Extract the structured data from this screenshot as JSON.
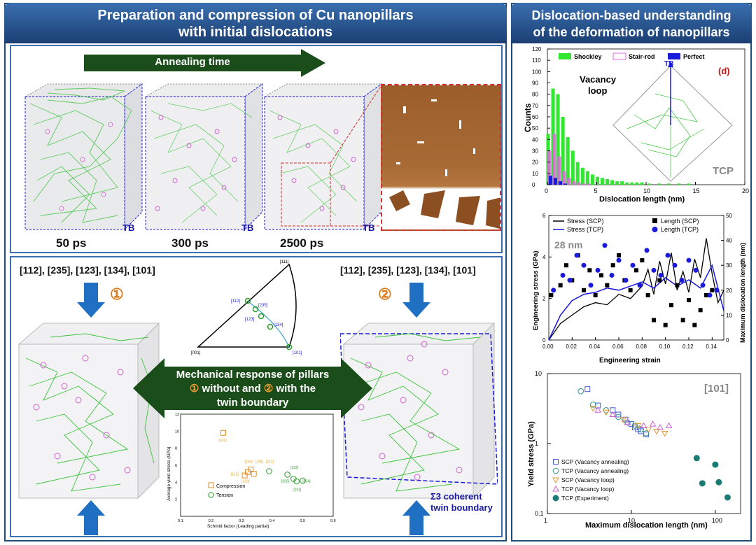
{
  "left_header": {
    "line1": "Preparation and compression of Cu nanopillars",
    "line2": "with initial dislocations"
  },
  "right_header": {
    "line1": "Dislocation-based understanding",
    "line2": "of the deformation of nanopillars"
  },
  "annealing_label": "Annealing time",
  "times": [
    "50 ps",
    "300 ps",
    "2500 ps"
  ],
  "tb_label": "TB",
  "directions": "[112], [235], [123], [134], [101]",
  "circle1": "①",
  "circle2": "②",
  "mech": {
    "line1": "Mechanical response of pillars",
    "line2a": "①",
    "line2b": " without and ",
    "line2c": "②",
    "line2d": " with the",
    "line3": "twin boundary"
  },
  "sigma3": {
    "line1": "Σ3 coherent",
    "line2": "twin boundary"
  },
  "stereo": {
    "top": "[111]",
    "left": "[001]",
    "right": "[101]",
    "labels": [
      "[112]",
      "[235]",
      "[123]",
      "[134]"
    ]
  },
  "schmid_chart": {
    "ylabel": "Average yield stress (GPa)",
    "xlabel": "Schmid factor (Leading partial)",
    "xticks": [
      "0.1",
      "0.2",
      "0.3",
      "0.4",
      "0.5",
      "0.6"
    ],
    "yticks": [
      "2",
      "4",
      "6",
      "8",
      "10",
      "12"
    ],
    "legend": [
      "Compression",
      "Tension"
    ],
    "point_labels": [
      "[101]",
      "[134]",
      "[235]",
      "[112]",
      "[123]",
      "[123]",
      "[235]",
      "[134]",
      "[101]",
      "[112]"
    ]
  },
  "chart_data": [
    {
      "type": "bar",
      "panel_tag": "(d)",
      "title": "",
      "xlabel": "Dislocation length (nm)",
      "ylabel": "Counts",
      "xlim": [
        0,
        20
      ],
      "ylim": [
        0,
        120
      ],
      "xticks": [
        "0",
        "5",
        "10",
        "15",
        "20"
      ],
      "yticks": [
        "0",
        "10",
        "20",
        "30",
        "40",
        "50",
        "60",
        "70",
        "80",
        "90",
        "100",
        "110",
        "120"
      ],
      "legend": [
        "Shockley",
        "Stair-rod",
        "Perfect"
      ],
      "annotations": [
        "Vacancy",
        "loop",
        "TB",
        "TCP"
      ],
      "x": [
        0.25,
        0.75,
        1.25,
        1.75,
        2.25,
        2.75,
        3.25,
        3.75,
        4.25,
        4.75,
        5.25,
        5.75,
        6.25,
        6.75,
        7.25,
        7.75,
        8.25,
        8.75,
        9.25,
        9.75,
        10.5,
        11.5,
        12.5,
        13.5,
        14.5
      ],
      "series": [
        {
          "name": "Shockley",
          "values": [
            45,
            85,
            80,
            60,
            42,
            30,
            20,
            15,
            12,
            9,
            7,
            6,
            5,
            4,
            3,
            3,
            2,
            2,
            2,
            2,
            1,
            1,
            1,
            1,
            1
          ]
        },
        {
          "name": "Stair-rod",
          "values": [
            30,
            45,
            25,
            12,
            6,
            3,
            2,
            1,
            1,
            0,
            0,
            0,
            0,
            0,
            0,
            0,
            0,
            0,
            0,
            0,
            0,
            0,
            0,
            0,
            0
          ]
        },
        {
          "name": "Perfect",
          "values": [
            8,
            6,
            3,
            1,
            0,
            0,
            0,
            0,
            0,
            0,
            0,
            0,
            0,
            0,
            0,
            0,
            0,
            0,
            0,
            0,
            0,
            0,
            0,
            0,
            0
          ]
        }
      ]
    },
    {
      "type": "line",
      "title": "",
      "annotation": "28 nm",
      "xlabel": "Engineering strain",
      "ylabel": "Engineering stress (GPa)",
      "y2label": "Maximum dislocation length (nm)",
      "xlim": [
        0,
        0.15
      ],
      "ylim": [
        0,
        6
      ],
      "y2lim": [
        0,
        50
      ],
      "xticks": [
        "0.00",
        "0.02",
        "0.04",
        "0.06",
        "0.08",
        "0.10",
        "0.12",
        "0.14"
      ],
      "yticks": [
        "0",
        "2",
        "4",
        "6"
      ],
      "y2ticks": [
        "0",
        "10",
        "20",
        "30",
        "40",
        "50"
      ],
      "legend": [
        "Stress (SCP)",
        "Stress (TCP)",
        "Length (SCP)",
        "Length (TCP)"
      ],
      "stress_scp": {
        "x": [
          0,
          0.01,
          0.02,
          0.03,
          0.04,
          0.05,
          0.06,
          0.07,
          0.08,
          0.085,
          0.09,
          0.095,
          0.1,
          0.105,
          0.11,
          0.115,
          0.12,
          0.125,
          0.13,
          0.135,
          0.14,
          0.145,
          0.15
        ],
        "y": [
          0,
          0.8,
          1.2,
          1.6,
          1.8,
          1.7,
          2.2,
          2.0,
          2.6,
          3.4,
          2.2,
          3.8,
          2.7,
          4.2,
          2.4,
          3.3,
          2.3,
          3.9,
          3.0,
          4.9,
          3.2,
          1.8,
          2.4
        ]
      },
      "stress_tcp": {
        "x": [
          0,
          0.01,
          0.02,
          0.03,
          0.04,
          0.05,
          0.06,
          0.07,
          0.08,
          0.09,
          0.1,
          0.11,
          0.12,
          0.13,
          0.14,
          0.15
        ],
        "y": [
          0,
          1.2,
          1.9,
          2.2,
          2.3,
          2.5,
          2.4,
          2.6,
          2.8,
          2.5,
          3.0,
          2.6,
          2.9,
          2.5,
          3.6,
          1.4
        ]
      },
      "length_scp": {
        "x": [
          0.002,
          0.01,
          0.015,
          0.02,
          0.025,
          0.03,
          0.035,
          0.04,
          0.045,
          0.05,
          0.055,
          0.06,
          0.065,
          0.07,
          0.075,
          0.08,
          0.085,
          0.09,
          0.095,
          0.1,
          0.105,
          0.11,
          0.115,
          0.12,
          0.125,
          0.13,
          0.135,
          0.14
        ],
        "y": [
          18,
          22,
          30,
          24,
          34,
          20,
          28,
          18,
          26,
          22,
          30,
          34,
          24,
          20,
          28,
          32,
          18,
          8,
          24,
          6,
          14,
          22,
          8,
          16,
          6,
          12,
          18,
          20
        ]
      },
      "length_tcp": {
        "x": [
          0.004,
          0.012,
          0.018,
          0.024,
          0.03,
          0.036,
          0.042,
          0.048,
          0.054,
          0.06,
          0.066,
          0.072,
          0.078,
          0.084,
          0.09,
          0.096,
          0.102,
          0.108,
          0.114,
          0.12,
          0.126,
          0.132,
          0.138,
          0.144
        ],
        "y": [
          20,
          26,
          24,
          34,
          30,
          22,
          28,
          38,
          26,
          32,
          24,
          30,
          22,
          36,
          28,
          26,
          34,
          30,
          24,
          32,
          28,
          22,
          18,
          20
        ]
      }
    },
    {
      "type": "scatter",
      "title": "",
      "annotation": "[101]",
      "xlabel": "Maximum dislocation length (nm)",
      "ylabel": "Yield stress (GPa)",
      "xscale": "log",
      "yscale": "log",
      "xlim": [
        1,
        200
      ],
      "ylim": [
        0.1,
        10
      ],
      "xticks": [
        "1",
        "10",
        "100"
      ],
      "yticks": [
        "0.1",
        "1",
        "10"
      ],
      "legend": [
        "SCP (Vacancy annealing)",
        "TCP (Vacancy annealing)",
        "SCP (Vacancy loop)",
        "TCP (Vacancy loop)",
        "TCP (Experiment)"
      ],
      "series": [
        {
          "name": "SCP (Vacancy annealing)",
          "x": [
            3.0,
            4.0,
            6.0,
            7.0,
            8.5,
            10.0,
            11.0,
            12.0,
            13.0,
            15.0
          ],
          "y": [
            6.0,
            3.5,
            3.0,
            2.6,
            2.2,
            1.9,
            1.7,
            1.6,
            1.5,
            1.35
          ]
        },
        {
          "name": "TCP (Vacancy annealing)",
          "x": [
            2.5,
            3.5,
            5.0,
            7.0,
            9.0,
            11.0,
            13.0,
            15.0
          ],
          "y": [
            5.6,
            3.6,
            3.0,
            2.4,
            2.0,
            1.8,
            1.6,
            1.4
          ]
        },
        {
          "name": "SCP (Vacancy loop)",
          "x": [
            3.5,
            5.0,
            8.0,
            12.0,
            16.0,
            20.0,
            25.0
          ],
          "y": [
            3.2,
            2.8,
            2.2,
            1.8,
            1.6,
            1.5,
            1.4
          ]
        },
        {
          "name": "TCP (Vacancy loop)",
          "x": [
            4.0,
            6.0,
            9.0,
            14.0,
            18.0,
            22.0,
            28.0
          ],
          "y": [
            3.0,
            2.6,
            2.0,
            1.8,
            1.9,
            1.7,
            1.8
          ]
        },
        {
          "name": "TCP (Experiment)",
          "x": [
            60,
            70,
            100,
            110,
            140
          ],
          "y": [
            0.62,
            0.27,
            0.5,
            0.28,
            0.17
          ]
        }
      ]
    }
  ],
  "colors": {
    "header": "#1f4e79",
    "arrow": "#1b4d1b",
    "blue_arrow": "#1f6fc2",
    "shockley": "#32e632",
    "stair": "#e066e0",
    "perfect": "#1a1adb",
    "tcp_exp": "#1a7a74"
  }
}
